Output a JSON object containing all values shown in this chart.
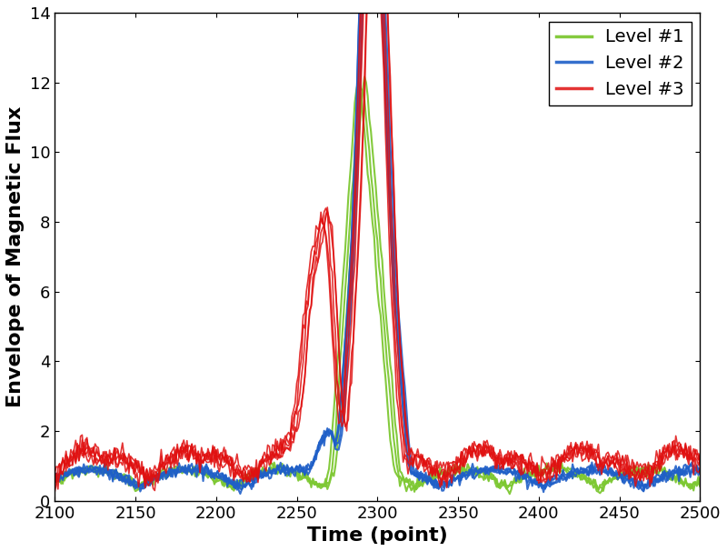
{
  "xlim": [
    2100,
    2500
  ],
  "ylim": [
    0,
    14
  ],
  "xticks": [
    2100,
    2150,
    2200,
    2250,
    2300,
    2350,
    2400,
    2450,
    2500
  ],
  "yticks": [
    0,
    2,
    4,
    6,
    8,
    10,
    12,
    14
  ],
  "xlabel": "Time (point)",
  "ylabel": "Envelope of Magnetic Flux",
  "title": "",
  "legend_labels": [
    "Level #1",
    "Level #2",
    "Level #3"
  ],
  "colors": [
    "#7dc832",
    "#1f5fc8",
    "#e01010"
  ],
  "figsize": [
    8.0,
    6.06
  ],
  "dpi": 100
}
